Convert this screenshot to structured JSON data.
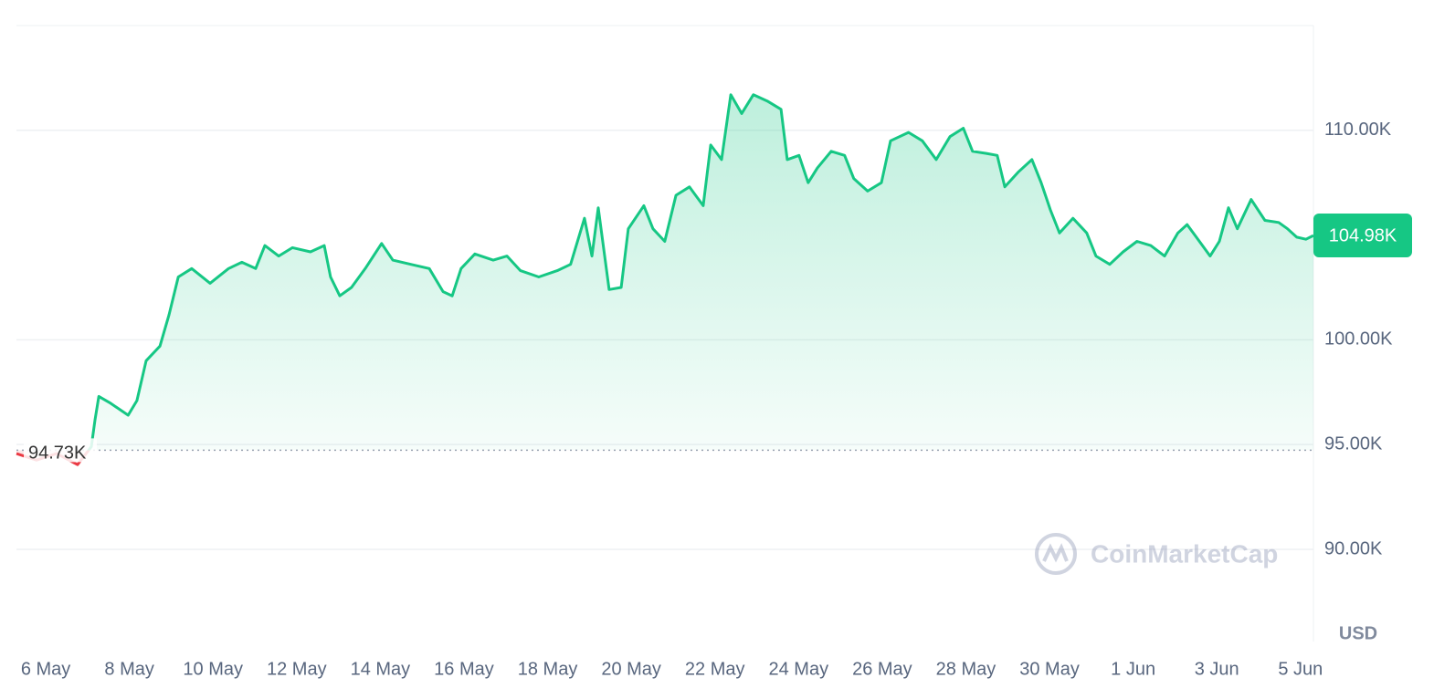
{
  "chart_data": {
    "type": "line",
    "color": "#16c784",
    "down_color": "#ea3943",
    "grid": true,
    "x": [
      -0.7,
      -0.22,
      0.26,
      0.76,
      1.09,
      1.18,
      1.27,
      1.53,
      1.97,
      2.18,
      2.4,
      2.73,
      2.95,
      3.17,
      3.49,
      3.93,
      4.37,
      4.69,
      5.02,
      5.24,
      5.57,
      5.9,
      6.33,
      6.66,
      6.81,
      7.03,
      7.31,
      7.64,
      8.03,
      8.3,
      8.73,
      9.17,
      9.5,
      9.72,
      9.93,
      10.26,
      10.7,
      11.03,
      11.35,
      11.79,
      12.23,
      12.55,
      12.88,
      13.06,
      13.21,
      13.47,
      13.76,
      13.93,
      14.3,
      14.52,
      14.8,
      15.07,
      15.39,
      15.72,
      15.9,
      16.16,
      16.38,
      16.64,
      16.92,
      17.25,
      17.58,
      17.73,
      18.01,
      18.23,
      18.45,
      18.78,
      19.1,
      19.32,
      19.65,
      19.98,
      20.2,
      20.63,
      20.96,
      21.29,
      21.62,
      21.94,
      22.16,
      22.49,
      22.75,
      22.93,
      23.25,
      23.58,
      23.8,
      24.02,
      24.24,
      24.56,
      24.89,
      25.11,
      25.44,
      25.76,
      26.09,
      26.42,
      26.75,
      27.07,
      27.29,
      27.51,
      27.84,
      28.06,
      28.28,
      28.49,
      28.82,
      29.15,
      29.48,
      29.69,
      29.91,
      30.13,
      30.31
    ],
    "values": [
      94570,
      94260,
      94570,
      94040,
      94900,
      96200,
      97300,
      97000,
      96400,
      97100,
      99000,
      99700,
      101200,
      103000,
      103400,
      102700,
      103400,
      103700,
      103400,
      104500,
      104000,
      104400,
      104200,
      104500,
      103000,
      102100,
      102500,
      103400,
      104600,
      103800,
      103600,
      103400,
      102300,
      102100,
      103400,
      104100,
      103800,
      104000,
      103300,
      103000,
      103300,
      103600,
      105800,
      104000,
      106300,
      102400,
      102500,
      105300,
      106400,
      105300,
      104700,
      106900,
      107300,
      106400,
      109300,
      108600,
      111700,
      110800,
      111700,
      111400,
      111000,
      108600,
      108800,
      107500,
      108200,
      109000,
      108800,
      107700,
      107100,
      107500,
      109500,
      109900,
      109500,
      108600,
      109700,
      110100,
      109000,
      108900,
      108800,
      107300,
      108000,
      108600,
      107500,
      106200,
      105100,
      105800,
      105100,
      104000,
      103600,
      104200,
      104700,
      104500,
      104000,
      105100,
      105500,
      104900,
      104000,
      104700,
      106300,
      105300,
      106700,
      105700,
      105600,
      105300,
      104900,
      104800,
      104980
    ],
    "xlim": [
      -0.7,
      30.31
    ],
    "xticks": [
      {
        "value": 0,
        "label": "6 May"
      },
      {
        "value": 2,
        "label": "8 May"
      },
      {
        "value": 4,
        "label": "10 May"
      },
      {
        "value": 6,
        "label": "12 May"
      },
      {
        "value": 8,
        "label": "14 May"
      },
      {
        "value": 10,
        "label": "16 May"
      },
      {
        "value": 12,
        "label": "18 May"
      },
      {
        "value": 14,
        "label": "20 May"
      },
      {
        "value": 16,
        "label": "22 May"
      },
      {
        "value": 18,
        "label": "24 May"
      },
      {
        "value": 20,
        "label": "26 May"
      },
      {
        "value": 22,
        "label": "28 May"
      },
      {
        "value": 24,
        "label": "30 May"
      },
      {
        "value": 26,
        "label": "1 Jun"
      },
      {
        "value": 28,
        "label": "3 Jun"
      },
      {
        "value": 30,
        "label": "5 Jun"
      }
    ],
    "ylim": [
      85600,
      115000
    ],
    "yticks": [
      {
        "value": 90000,
        "label": "90.00K"
      },
      {
        "value": 95000,
        "label": "95.00K"
      },
      {
        "value": 100000,
        "label": "100.00K"
      },
      {
        "value": 110000,
        "label": "110.00K"
      }
    ],
    "baseline": {
      "value": 94730,
      "label": "94.73K"
    },
    "last_price": {
      "value": 104980,
      "label": "104.98K"
    },
    "unit_label": "USD",
    "watermark": "CoinMarketCap"
  }
}
